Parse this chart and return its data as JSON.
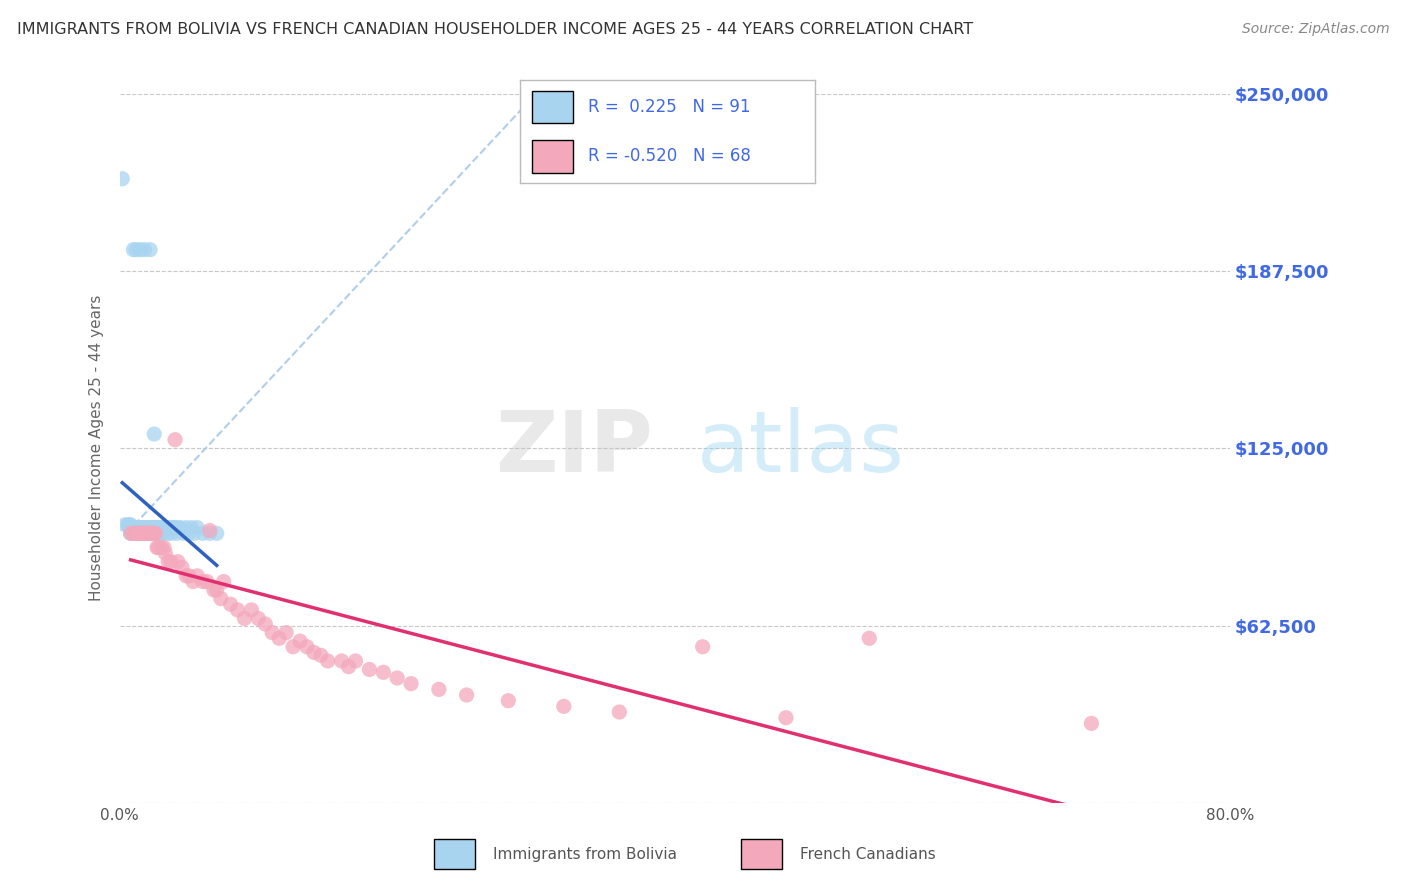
{
  "title": "IMMIGRANTS FROM BOLIVIA VS FRENCH CANADIAN HOUSEHOLDER INCOME AGES 25 - 44 YEARS CORRELATION CHART",
  "source": "Source: ZipAtlas.com",
  "ylabel": "Householder Income Ages 25 - 44 years",
  "xlim": [
    0,
    0.8
  ],
  "ylim": [
    0,
    250000
  ],
  "yticks": [
    0,
    62500,
    125000,
    187500,
    250000
  ],
  "ytick_labels": [
    "",
    "$62,500",
    "$125,000",
    "$187,500",
    "$250,000"
  ],
  "xtick_left_label": "0.0%",
  "xtick_right_label": "80.0%",
  "R_bolivia": 0.225,
  "N_bolivia": 91,
  "R_french": -0.52,
  "N_french": 68,
  "color_bolivia": "#A8D4F0",
  "color_french": "#F4A8BC",
  "trend_color_bolivia": "#3060C0",
  "trend_color_french": "#E03070",
  "diag_color": "#A8C8E8",
  "watermark_zip": "ZIP",
  "watermark_atlas": "atlas",
  "background_color": "#FFFFFF",
  "grid_color": "#C8C8C8",
  "title_color": "#333333",
  "axis_label_color": "#4169E1",
  "legend_label_bolivia": "Immigrants from Bolivia",
  "legend_label_french": "French Canadians",
  "bolivia_scatter_x": [
    0.002,
    0.004,
    0.006,
    0.007,
    0.008,
    0.008,
    0.009,
    0.01,
    0.01,
    0.011,
    0.011,
    0.012,
    0.012,
    0.013,
    0.013,
    0.013,
    0.014,
    0.014,
    0.014,
    0.015,
    0.015,
    0.015,
    0.016,
    0.016,
    0.016,
    0.017,
    0.017,
    0.017,
    0.018,
    0.018,
    0.018,
    0.019,
    0.019,
    0.019,
    0.02,
    0.02,
    0.02,
    0.02,
    0.021,
    0.021,
    0.021,
    0.022,
    0.022,
    0.022,
    0.023,
    0.023,
    0.023,
    0.024,
    0.024,
    0.025,
    0.025,
    0.025,
    0.026,
    0.026,
    0.027,
    0.027,
    0.028,
    0.028,
    0.029,
    0.029,
    0.03,
    0.03,
    0.031,
    0.031,
    0.032,
    0.033,
    0.034,
    0.035,
    0.036,
    0.037,
    0.038,
    0.039,
    0.04,
    0.041,
    0.042,
    0.044,
    0.046,
    0.048,
    0.05,
    0.052,
    0.054,
    0.056,
    0.06,
    0.065,
    0.07,
    0.01,
    0.012,
    0.015,
    0.018,
    0.022,
    0.025
  ],
  "bolivia_scatter_y": [
    220000,
    98000,
    98000,
    98000,
    95000,
    98000,
    95000,
    97000,
    95000,
    95000,
    97000,
    95000,
    97000,
    95000,
    95000,
    97000,
    95000,
    95000,
    97000,
    95000,
    95000,
    97000,
    95000,
    97000,
    95000,
    95000,
    95000,
    97000,
    95000,
    97000,
    95000,
    95000,
    95000,
    97000,
    95000,
    97000,
    95000,
    95000,
    97000,
    95000,
    95000,
    95000,
    97000,
    95000,
    97000,
    95000,
    95000,
    97000,
    95000,
    95000,
    97000,
    95000,
    95000,
    97000,
    95000,
    97000,
    97000,
    95000,
    95000,
    97000,
    95000,
    97000,
    95000,
    97000,
    97000,
    97000,
    97000,
    95000,
    97000,
    95000,
    97000,
    97000,
    97000,
    95000,
    97000,
    97000,
    95000,
    97000,
    95000,
    97000,
    95000,
    97000,
    95000,
    95000,
    95000,
    195000,
    195000,
    195000,
    195000,
    195000,
    130000
  ],
  "french_scatter_x": [
    0.008,
    0.01,
    0.012,
    0.013,
    0.015,
    0.016,
    0.017,
    0.018,
    0.019,
    0.02,
    0.021,
    0.022,
    0.023,
    0.024,
    0.025,
    0.026,
    0.027,
    0.028,
    0.03,
    0.032,
    0.033,
    0.035,
    0.037,
    0.04,
    0.042,
    0.045,
    0.048,
    0.05,
    0.053,
    0.056,
    0.06,
    0.063,
    0.065,
    0.068,
    0.07,
    0.073,
    0.075,
    0.08,
    0.085,
    0.09,
    0.095,
    0.1,
    0.105,
    0.11,
    0.115,
    0.12,
    0.125,
    0.13,
    0.135,
    0.14,
    0.145,
    0.15,
    0.16,
    0.165,
    0.17,
    0.18,
    0.19,
    0.2,
    0.21,
    0.23,
    0.25,
    0.28,
    0.32,
    0.36,
    0.42,
    0.48,
    0.54,
    0.7
  ],
  "french_scatter_y": [
    95000,
    95000,
    95000,
    95000,
    95000,
    95000,
    95000,
    95000,
    95000,
    95000,
    95000,
    95000,
    95000,
    95000,
    95000,
    95000,
    90000,
    90000,
    90000,
    90000,
    88000,
    85000,
    85000,
    128000,
    85000,
    83000,
    80000,
    80000,
    78000,
    80000,
    78000,
    78000,
    96000,
    75000,
    75000,
    72000,
    78000,
    70000,
    68000,
    65000,
    68000,
    65000,
    63000,
    60000,
    58000,
    60000,
    55000,
    57000,
    55000,
    53000,
    52000,
    50000,
    50000,
    48000,
    50000,
    47000,
    46000,
    44000,
    42000,
    40000,
    38000,
    36000,
    34000,
    32000,
    55000,
    30000,
    58000,
    28000
  ]
}
